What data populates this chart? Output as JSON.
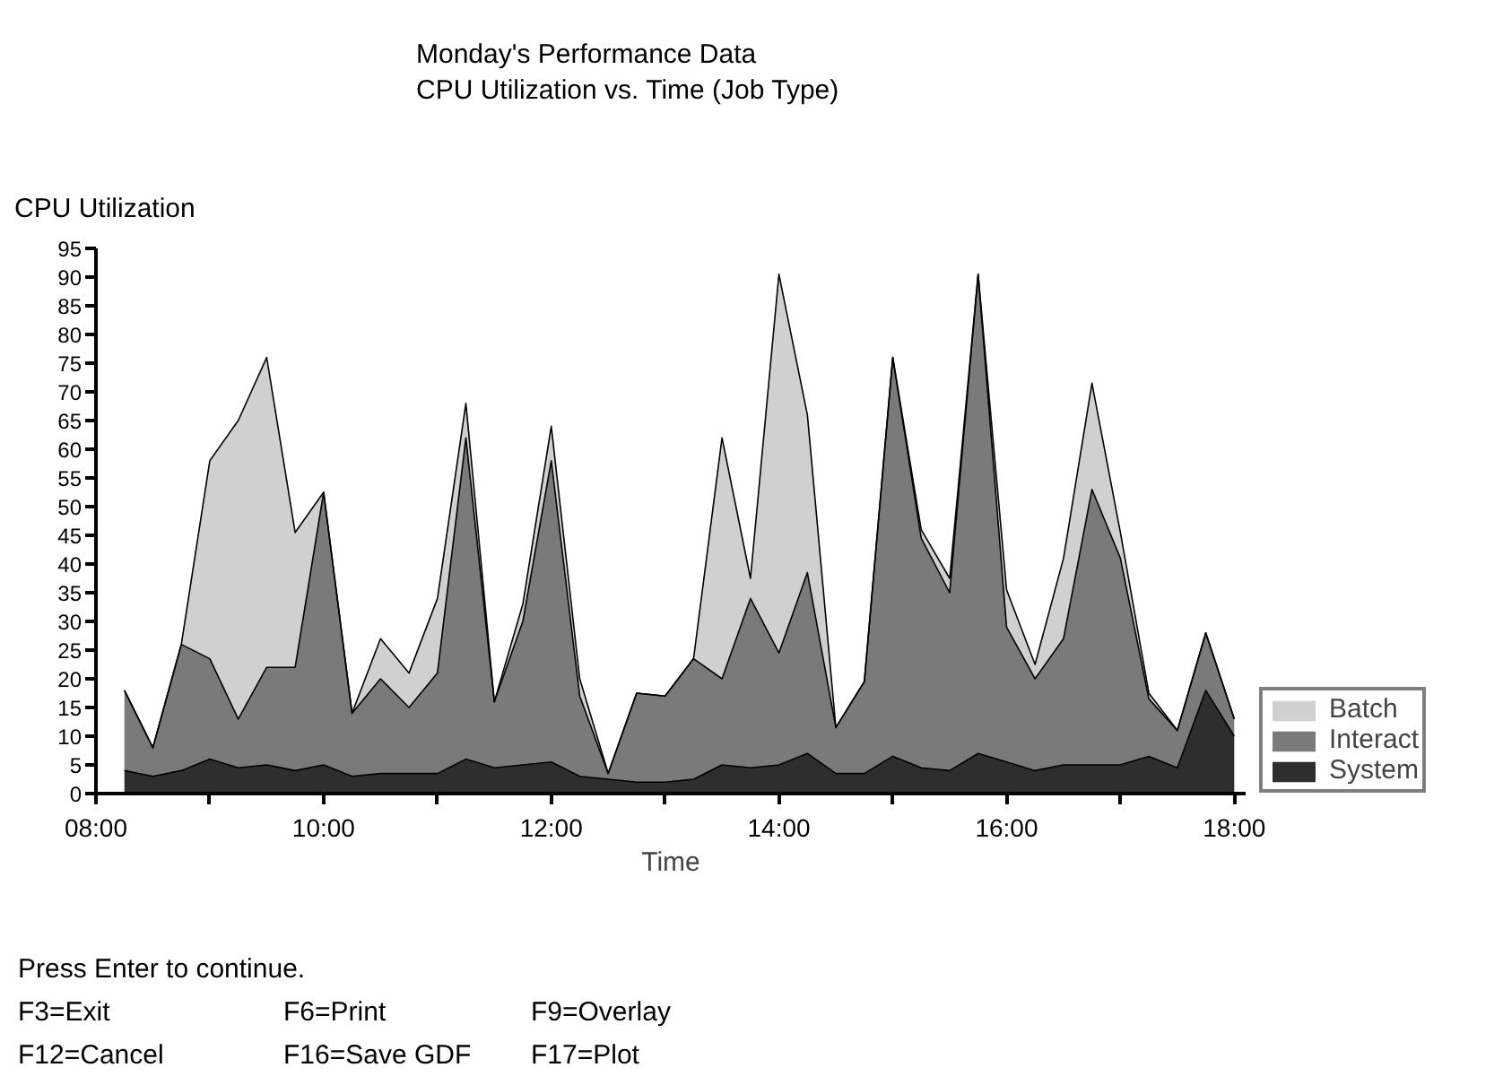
{
  "chart_data": {
    "type": "area",
    "stacked": true,
    "title": "Monday's Performance Data",
    "subtitle": "CPU Utilization vs. Time (Job Type)",
    "xlabel": "Time",
    "ylabel": "CPU Utilization",
    "x": [
      8.25,
      8.5,
      8.75,
      9,
      9.25,
      9.5,
      9.75,
      10,
      10.25,
      10.5,
      10.75,
      11,
      11.25,
      11.5,
      11.75,
      12,
      12.25,
      12.5,
      12.75,
      13,
      13.25,
      13.5,
      13.75,
      14,
      14.25,
      14.5,
      14.75,
      15,
      15.25,
      15.5,
      15.75,
      16,
      16.25,
      16.5,
      16.75,
      17,
      17.25,
      17.5,
      17.75,
      18
    ],
    "series": [
      {
        "name": "System",
        "color": "#2e2e2e",
        "values": [
          4,
          3,
          4,
          6,
          4.5,
          5,
          4,
          5,
          3,
          3.5,
          3.5,
          3.5,
          6,
          4.5,
          5,
          5.5,
          3,
          2.5,
          2,
          2,
          2.5,
          5,
          4.5,
          5,
          7,
          3.5,
          3.5,
          6.5,
          4.5,
          4,
          7,
          5.5,
          4,
          5,
          5,
          5,
          6.5,
          4.5,
          18,
          10
        ]
      },
      {
        "name": "Interact",
        "color": "#7a7a7a",
        "values": [
          14,
          5,
          22,
          17.5,
          8.5,
          17,
          18,
          47.5,
          11,
          16.5,
          11.5,
          17.5,
          56,
          11.5,
          25,
          52.5,
          14,
          1,
          15.5,
          15,
          21,
          15,
          29.5,
          19.5,
          31.5,
          8,
          16,
          69.5,
          40,
          31,
          83.5,
          23.5,
          16,
          22,
          48,
          36,
          10,
          6.5,
          10,
          3
        ]
      },
      {
        "name": "Batch",
        "color": "#d0d0d0",
        "values": [
          0,
          0,
          0,
          34.5,
          52,
          54,
          23.5,
          0,
          0,
          7,
          6,
          13,
          6,
          0,
          3,
          6,
          3,
          0,
          0,
          0,
          0,
          42,
          3.5,
          66,
          27.5,
          0,
          0,
          0,
          1.5,
          2.5,
          0,
          6.5,
          2.5,
          14,
          18.5,
          4.5,
          1,
          0,
          0,
          0
        ]
      }
    ],
    "xlim": [
      8,
      18.1
    ],
    "xticks": [
      {
        "value": 8,
        "label": "08:00"
      },
      {
        "value": 9,
        "label": null
      },
      {
        "value": 10,
        "label": "10:00"
      },
      {
        "value": 11,
        "label": null
      },
      {
        "value": 12,
        "label": "12:00"
      },
      {
        "value": 13,
        "label": null
      },
      {
        "value": 14,
        "label": "14:00"
      },
      {
        "value": 15,
        "label": null
      },
      {
        "value": 16,
        "label": "16:00"
      },
      {
        "value": 17,
        "label": null
      },
      {
        "value": 18,
        "label": "18:00"
      }
    ],
    "ylim": [
      0,
      95
    ],
    "yticks": [
      0,
      5,
      10,
      15,
      20,
      25,
      30,
      35,
      40,
      45,
      50,
      55,
      60,
      65,
      70,
      75,
      80,
      85,
      90,
      95
    ],
    "grid": false,
    "legend": "bottom right",
    "annotations": [
      "Press Enter to continue.",
      "F3=Exit",
      "F6=Print",
      "F9=Overlay",
      "F12=Cancel",
      "F16=Save GDF",
      "F17=Plot"
    ]
  }
}
